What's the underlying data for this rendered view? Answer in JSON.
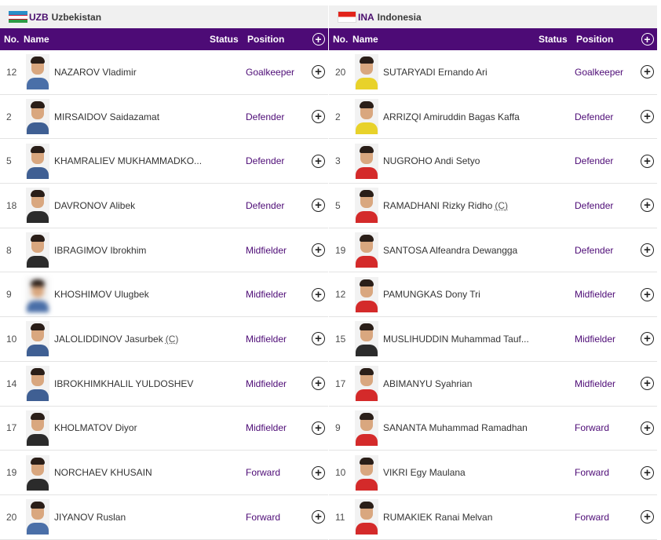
{
  "teams": [
    {
      "flag": "uzb",
      "code": "UZB",
      "name": "Uzbekistan",
      "columns": {
        "no": "No.",
        "name": "Name",
        "status": "Status",
        "position": "Position"
      },
      "players": [
        {
          "no": "12",
          "name": "NAZAROV Vladimir",
          "captain": "",
          "position": "Goalkeeper",
          "shirt": "#4a6fa8"
        },
        {
          "no": "2",
          "name": "MIRSAIDOV Saidazamat",
          "captain": "",
          "position": "Defender",
          "shirt": "#3f5f93"
        },
        {
          "no": "5",
          "name": "KHAMRALIEV MUKHAMMADKO...",
          "captain": "",
          "position": "Defender",
          "shirt": "#3f5f93"
        },
        {
          "no": "18",
          "name": "DAVRONOV Alibek",
          "captain": "",
          "position": "Defender",
          "shirt": "#2b2b2b"
        },
        {
          "no": "8",
          "name": "IBRAGIMOV Ibrokhim",
          "captain": "",
          "position": "Midfielder",
          "shirt": "#2b2b2b"
        },
        {
          "no": "9",
          "name": "KHOSHIMOV Ulugbek",
          "captain": "",
          "position": "Midfielder",
          "shirt": "#4a6fa8"
        },
        {
          "no": "10",
          "name": "JALOLIDDINOV Jasurbek",
          "captain": "(C)",
          "position": "Midfielder",
          "shirt": "#3f5f93"
        },
        {
          "no": "14",
          "name": "IBROKHIMKHALIL YULDOSHEV",
          "captain": "",
          "position": "Midfielder",
          "shirt": "#3f5f93"
        },
        {
          "no": "17",
          "name": "KHOLMATOV Diyor",
          "captain": "",
          "position": "Midfielder",
          "shirt": "#2b2b2b"
        },
        {
          "no": "19",
          "name": "NORCHAEV KHUSAIN",
          "captain": "",
          "position": "Forward",
          "shirt": "#2b2b2b"
        },
        {
          "no": "20",
          "name": "JIYANOV Ruslan",
          "captain": "",
          "position": "Forward",
          "shirt": "#4a6fa8"
        }
      ]
    },
    {
      "flag": "ina",
      "code": "INA",
      "name": "Indonesia",
      "columns": {
        "no": "No.",
        "name": "Name",
        "status": "Status",
        "position": "Position"
      },
      "players": [
        {
          "no": "20",
          "name": "SUTARYADI Ernando Ari",
          "captain": "",
          "position": "Goalkeeper",
          "shirt": "#e8d22a"
        },
        {
          "no": "2",
          "name": "ARRIZQI Amiruddin Bagas Kaffa",
          "captain": "",
          "position": "Defender",
          "shirt": "#e8d22a"
        },
        {
          "no": "3",
          "name": "NUGROHO Andi Setyo",
          "captain": "",
          "position": "Defender",
          "shirt": "#d42a2a"
        },
        {
          "no": "5",
          "name": "RAMADHANI Rizky Ridho",
          "captain": "(C)",
          "position": "Defender",
          "shirt": "#d42a2a"
        },
        {
          "no": "19",
          "name": "SANTOSA Alfeandra Dewangga",
          "captain": "",
          "position": "Defender",
          "shirt": "#d42a2a"
        },
        {
          "no": "12",
          "name": "PAMUNGKAS Dony Tri",
          "captain": "",
          "position": "Midfielder",
          "shirt": "#d42a2a"
        },
        {
          "no": "15",
          "name": "MUSLIHUDDIN Muhammad Tauf...",
          "captain": "",
          "position": "Midfielder",
          "shirt": "#2b2b2b"
        },
        {
          "no": "17",
          "name": "ABIMANYU Syahrian",
          "captain": "",
          "position": "Midfielder",
          "shirt": "#d42a2a"
        },
        {
          "no": "9",
          "name": "SANANTA Muhammad Ramadhan",
          "captain": "",
          "position": "Forward",
          "shirt": "#d42a2a"
        },
        {
          "no": "10",
          "name": "VIKRI Egy Maulana",
          "captain": "",
          "position": "Forward",
          "shirt": "#d42a2a"
        },
        {
          "no": "11",
          "name": "RUMAKIEK Ranai Melvan",
          "captain": "",
          "position": "Forward",
          "shirt": "#d42a2a"
        }
      ]
    }
  ],
  "icons": {
    "add": "plus-circle-icon",
    "player_photo": "player-photo"
  },
  "colors": {
    "header_bg": "#4d0b76",
    "position_text": "#4d0b76",
    "team_bar": "#f0f0f0"
  }
}
